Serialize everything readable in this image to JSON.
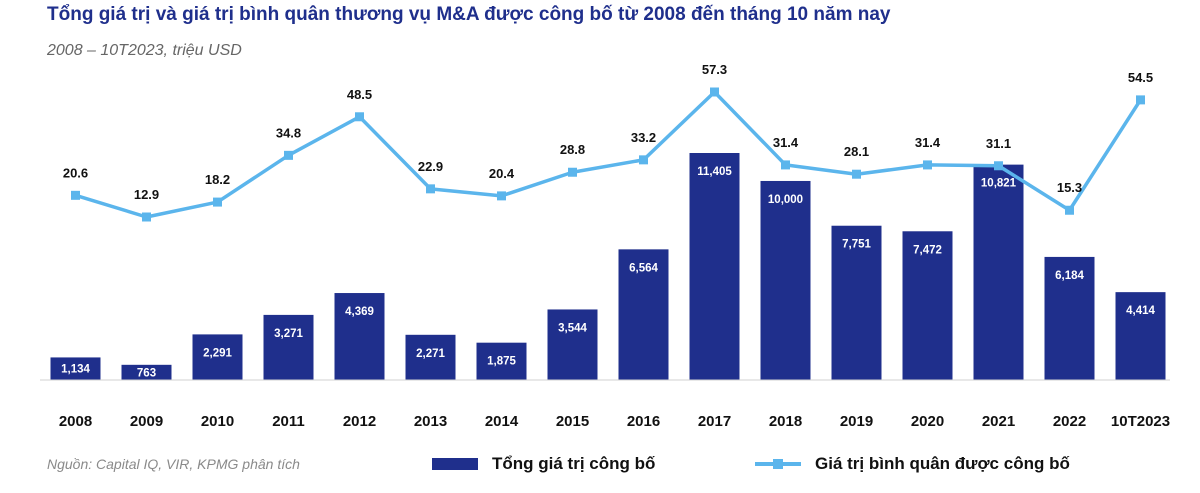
{
  "header": {
    "title": "Tổng giá trị và giá trị bình quân thương vụ M&A được công bố từ 2008 đến tháng 10 năm nay",
    "subtitle": "2008 – 10T2023, triệu USD"
  },
  "source": "Nguồn: Capital IQ, VIR, KPMG phân tích",
  "colors": {
    "bar": "#1f2f8c",
    "line": "#5bb5ec"
  },
  "chart_data": {
    "type": "bar",
    "categories": [
      "2008",
      "2009",
      "2010",
      "2011",
      "2012",
      "2013",
      "2014",
      "2015",
      "2016",
      "2017",
      "2018",
      "2019",
      "2020",
      "2021",
      "2022",
      "10T2023"
    ],
    "series": [
      {
        "name": "Tổng giá trị công bố",
        "type": "bar",
        "values": [
          1134,
          763,
          2291,
          3271,
          4369,
          2271,
          1875,
          3544,
          6564,
          11405,
          10000,
          7751,
          7472,
          10821,
          6184,
          4414
        ],
        "labels": [
          "1,134",
          "763",
          "2,291",
          "3,271",
          "4,369",
          "2,271",
          "1,875",
          "3,544",
          "6,564",
          "11,405",
          "10,000",
          "7,751",
          "7,472",
          "10,821",
          "6,184",
          "4,414"
        ]
      },
      {
        "name": "Giá trị bình quân được công bố",
        "type": "line",
        "values": [
          20.6,
          12.9,
          18.2,
          34.8,
          48.5,
          22.9,
          20.4,
          28.8,
          33.2,
          57.3,
          31.4,
          28.1,
          31.4,
          31.1,
          15.3,
          54.5
        ],
        "labels": [
          "20.6",
          "12.9",
          "18.2",
          "34.8",
          "48.5",
          "22.9",
          "20.4",
          "28.8",
          "33.2",
          "57.3",
          "31.4",
          "28.1",
          "31.4",
          "31.1",
          "15.3",
          "54.5"
        ]
      }
    ],
    "title": "Tổng giá trị và giá trị bình quân thương vụ M&A được công bố từ 2008 đến tháng 10 năm nay",
    "subtitle": "2008 – 10T2023, triệu USD",
    "grid": false,
    "legend_position": "bottom"
  }
}
